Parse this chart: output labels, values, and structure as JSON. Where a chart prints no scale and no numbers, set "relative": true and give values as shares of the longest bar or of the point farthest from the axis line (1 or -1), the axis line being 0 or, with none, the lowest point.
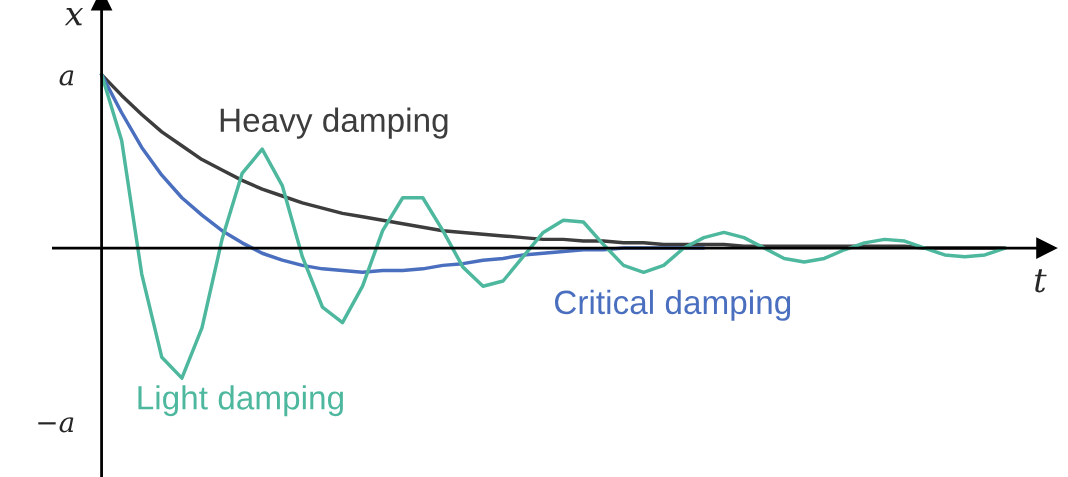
{
  "chart_data": {
    "type": "line",
    "xlabel": "t",
    "ylabel": "x",
    "categories": [
      null,
      null,
      null,
      null,
      null,
      null,
      null,
      null,
      null,
      null,
      null,
      null,
      null,
      null,
      null,
      null,
      null,
      null,
      null,
      null,
      null,
      null,
      null,
      null,
      null,
      null,
      null,
      null,
      null,
      null,
      null,
      null,
      null,
      null,
      null,
      null,
      null,
      null,
      null,
      null,
      null,
      null,
      null,
      null,
      null,
      null
    ],
    "series": [
      {
        "name": "Heavy damping",
        "color": "#3d3d3d",
        "values": [
          1,
          0.88,
          0.77,
          0.67,
          0.59,
          0.51,
          0.45,
          0.39,
          0.34,
          0.3,
          0.26,
          0.23,
          0.2,
          0.18,
          0.16,
          0.14,
          0.12,
          0.1,
          0.09,
          0.08,
          0.07,
          0.06,
          0.05,
          0.05,
          0.04,
          0.04,
          0.03,
          0.03,
          0.02,
          0.02,
          0.02,
          0.02,
          0.01,
          0.01,
          0.01,
          0.01,
          0.01,
          0.01,
          0.01,
          0.01,
          0.01,
          0,
          0,
          0,
          0,
          0
        ]
      },
      {
        "name": "Critical damping",
        "color": "#4a6fbf",
        "values": [
          1,
          0.78,
          0.58,
          0.42,
          0.29,
          0.19,
          0.1,
          0.03,
          -0.03,
          -0.07,
          -0.1,
          -0.12,
          -0.13,
          -0.14,
          -0.13,
          -0.13,
          -0.12,
          -0.1,
          -0.09,
          -0.07,
          -0.06,
          -0.04,
          -0.03,
          -0.02,
          -0.01,
          -0.01,
          0,
          0,
          0,
          0,
          0,
          null,
          null,
          null,
          null,
          null,
          null,
          null,
          null,
          null,
          null,
          null,
          null,
          null,
          null,
          null
        ]
      },
      {
        "name": "Light damping",
        "color": "#4db89e",
        "values": [
          1,
          0.62,
          -0.15,
          -0.63,
          -0.75,
          -0.46,
          0.05,
          0.43,
          0.57,
          0.36,
          -0.05,
          -0.34,
          -0.43,
          -0.22,
          0.1,
          0.29,
          0.29,
          0.1,
          -0.11,
          -0.22,
          -0.19,
          -0.05,
          0.09,
          0.16,
          0.15,
          0.02,
          -0.1,
          -0.14,
          -0.1,
          0,
          0.06,
          0.09,
          0.06,
          0,
          -0.06,
          -0.08,
          -0.06,
          -0.01,
          0.03,
          0.05,
          0.04,
          0,
          -0.04,
          -0.05,
          -0.04,
          0
        ]
      }
    ],
    "relative": true,
    "annotations": [
      "a",
      "−a"
    ],
    "legend": false,
    "grid": false
  }
}
